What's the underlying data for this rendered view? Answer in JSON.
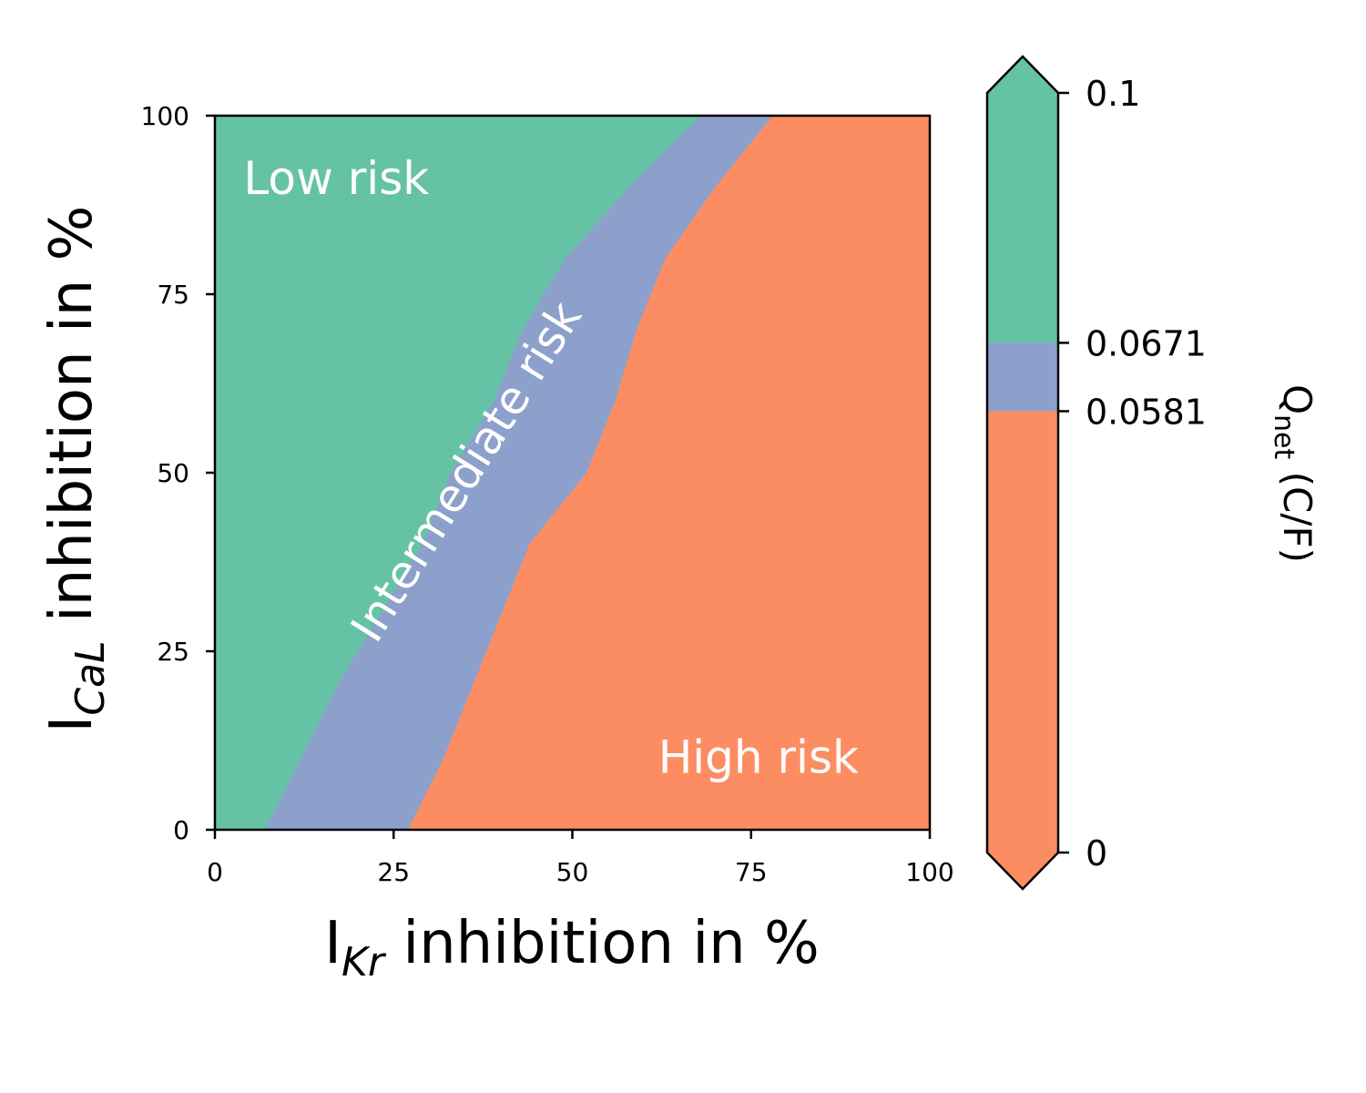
{
  "chart_data": {
    "type": "heatmap",
    "x_axis": {
      "label_main": "I",
      "label_sub": "Kr",
      "label_rest": " inhibition in %",
      "range": [
        0,
        100
      ],
      "ticks": [
        0,
        25,
        50,
        75,
        100
      ],
      "tick_labels": [
        "0",
        "25",
        "50",
        "75",
        "100"
      ]
    },
    "y_axis": {
      "label_main": "I",
      "label_sub": "CaL",
      "label_rest": " inhibition in %",
      "range": [
        0,
        100
      ],
      "ticks": [
        0,
        25,
        50,
        75,
        100
      ],
      "tick_labels": [
        "0",
        "25",
        "50",
        "75",
        "100"
      ]
    },
    "regions": [
      {
        "label": "Low risk",
        "color": "#66c2a5",
        "label_pos_data": [
          4,
          89
        ]
      },
      {
        "label": "Intermediate risk",
        "color": "#8da0cb",
        "label_pos_data": [
          37,
          49
        ],
        "label_rotation_deg": -58
      },
      {
        "label": "High risk",
        "color": "#fc8d62",
        "label_pos_data": [
          62,
          8
        ]
      }
    ],
    "boundaries": {
      "low_intermediate": {
        "description": "x position (%) where low-risk region ends for given y",
        "y": [
          0,
          10,
          20,
          30,
          40,
          50,
          60,
          70,
          80,
          90,
          100
        ],
        "x": [
          7,
          12,
          17,
          23,
          29,
          33,
          39,
          43,
          49,
          58,
          68
        ]
      },
      "intermediate_high": {
        "description": "x position (%) where high-risk region begins for given y",
        "y": [
          0,
          10,
          20,
          30,
          40,
          50,
          60,
          70,
          80,
          90,
          100
        ],
        "x": [
          27,
          32,
          36,
          40,
          44,
          52,
          56,
          59,
          63,
          70,
          78
        ]
      }
    },
    "colorbar": {
      "title_main": "Q",
      "title_sub": "net",
      "title_rest": " (C/F)",
      "range": [
        0,
        0.1
      ],
      "ticks": [
        0,
        0.0581,
        0.0671,
        0.1
      ],
      "tick_labels": [
        "0",
        "0.0581",
        "0.0671",
        "0.1"
      ],
      "extend": "both",
      "segments": [
        {
          "from": 0,
          "to": 0.0581,
          "color": "#fc8d62"
        },
        {
          "from": 0.0581,
          "to": 0.0671,
          "color": "#8da0cb"
        },
        {
          "from": 0.0671,
          "to": 0.1,
          "color": "#66c2a5"
        }
      ]
    }
  }
}
